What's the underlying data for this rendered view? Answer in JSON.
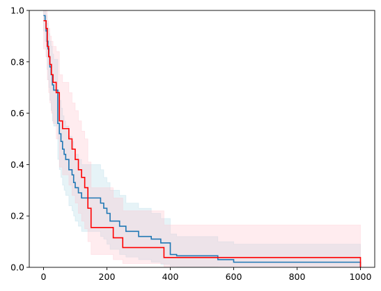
{
  "chart_data": {
    "type": "line",
    "subtype": "step",
    "title": "",
    "xlabel": "",
    "ylabel": "",
    "xlim": [
      -45,
      1045
    ],
    "ylim": [
      0,
      1
    ],
    "grid": false,
    "legend": "none",
    "x_ticks": [
      0,
      200,
      400,
      600,
      800,
      1000
    ],
    "x_tick_labels": [
      "0",
      "200",
      "400",
      "600",
      "800",
      "1000"
    ],
    "y_ticks": [
      0,
      0.2,
      0.4,
      0.6,
      0.8,
      1.0
    ],
    "y_tick_labels": [
      "0.0",
      "0.2",
      "0.4",
      "0.6",
      "0.8",
      "1.0"
    ],
    "series": [
      {
        "color": "#1f77b4",
        "band_color": "#add8e6",
        "x": [
          0,
          5,
          8,
          11,
          14,
          17,
          20,
          24,
          28,
          32,
          45,
          50,
          55,
          60,
          65,
          70,
          80,
          90,
          95,
          100,
          110,
          120,
          130,
          150,
          180,
          190,
          200,
          210,
          220,
          240,
          260,
          300,
          340,
          370,
          390,
          400,
          420,
          540,
          550,
          600,
          990,
          1000
        ],
        "y": [
          0.98,
          0.96,
          0.92,
          0.88,
          0.85,
          0.82,
          0.78,
          0.75,
          0.71,
          0.69,
          0.56,
          0.52,
          0.49,
          0.46,
          0.44,
          0.42,
          0.38,
          0.36,
          0.33,
          0.31,
          0.29,
          0.27,
          0.27,
          0.27,
          0.25,
          0.23,
          0.21,
          0.18,
          0.18,
          0.16,
          0.14,
          0.12,
          0.11,
          0.095,
          0.095,
          0.05,
          0.045,
          0.045,
          0.03,
          0.02,
          0.02,
          0.0
        ],
        "band_lower": [
          0.92,
          0.88,
          0.82,
          0.77,
          0.73,
          0.7,
          0.65,
          0.61,
          0.57,
          0.55,
          0.42,
          0.38,
          0.35,
          0.32,
          0.3,
          0.28,
          0.24,
          0.22,
          0.2,
          0.18,
          0.16,
          0.14,
          0.14,
          0.14,
          0.12,
          0.11,
          0.09,
          0.07,
          0.07,
          0.05,
          0.04,
          0.03,
          0.02,
          0.012,
          0.012,
          0.003,
          0.002,
          0.002,
          0.0,
          0.0,
          0.0,
          0.0
        ],
        "band_upper": [
          1.0,
          1.0,
          0.98,
          0.95,
          0.93,
          0.91,
          0.88,
          0.86,
          0.83,
          0.81,
          0.69,
          0.65,
          0.62,
          0.59,
          0.57,
          0.55,
          0.51,
          0.49,
          0.46,
          0.44,
          0.42,
          0.4,
          0.4,
          0.4,
          0.38,
          0.35,
          0.33,
          0.3,
          0.3,
          0.28,
          0.25,
          0.23,
          0.21,
          0.19,
          0.19,
          0.13,
          0.12,
          0.12,
          0.1,
          0.09,
          0.09,
          0.09
        ]
      },
      {
        "color": "#ff0000",
        "band_color": "#ffc0cb",
        "x": [
          0,
          8,
          12,
          16,
          20,
          25,
          30,
          40,
          50,
          60,
          80,
          90,
          100,
          110,
          120,
          130,
          140,
          150,
          220,
          250,
          380,
          1000
        ],
        "y": [
          0.96,
          0.93,
          0.86,
          0.82,
          0.79,
          0.75,
          0.72,
          0.68,
          0.57,
          0.54,
          0.5,
          0.46,
          0.42,
          0.38,
          0.35,
          0.31,
          0.23,
          0.155,
          0.115,
          0.077,
          0.038,
          0.0
        ],
        "band_lower": [
          0.85,
          0.82,
          0.73,
          0.68,
          0.64,
          0.6,
          0.56,
          0.5,
          0.39,
          0.36,
          0.32,
          0.28,
          0.25,
          0.21,
          0.18,
          0.15,
          0.1,
          0.05,
          0.03,
          0.015,
          0.003,
          0.0
        ],
        "band_upper": [
          1.0,
          1.0,
          0.96,
          0.93,
          0.9,
          0.88,
          0.86,
          0.84,
          0.75,
          0.72,
          0.68,
          0.64,
          0.61,
          0.57,
          0.53,
          0.5,
          0.41,
          0.31,
          0.27,
          0.22,
          0.165,
          0.165
        ]
      }
    ]
  }
}
